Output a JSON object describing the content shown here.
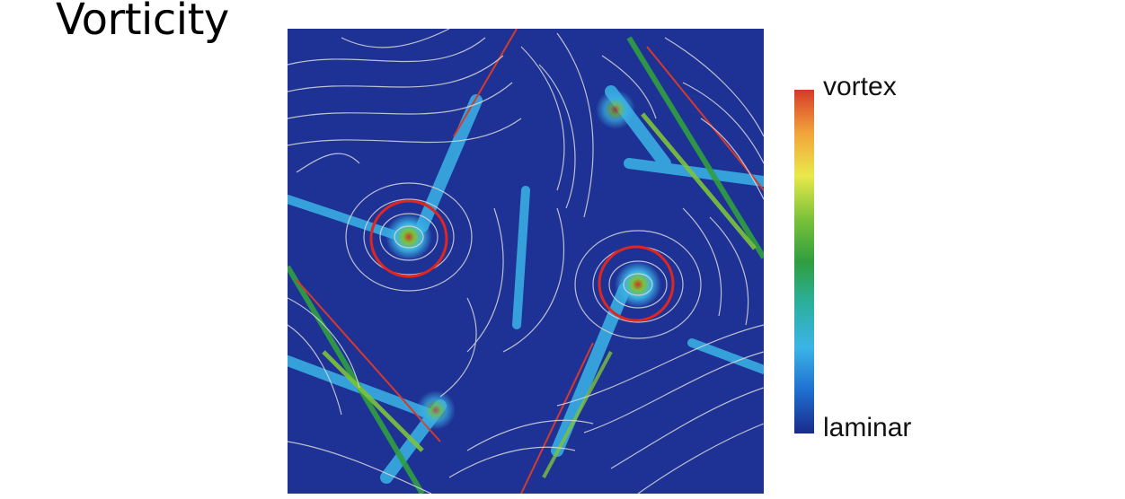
{
  "title": "Vorticity",
  "colorbar": {
    "top_label": "vortex",
    "bottom_label": "laminar",
    "stops": [
      "#1a2a8a",
      "#1f6fd0",
      "#3bb4e6",
      "#2bb0a0",
      "#2f9e3f",
      "#7cc23a",
      "#e9e94a",
      "#f2a33a",
      "#d63a2a"
    ]
  },
  "field": {
    "background_color": "#1e3296",
    "streamline_color": "#d9d9d9",
    "band_color": "#3aa8e0",
    "marker_color": "#e0261e"
  }
}
